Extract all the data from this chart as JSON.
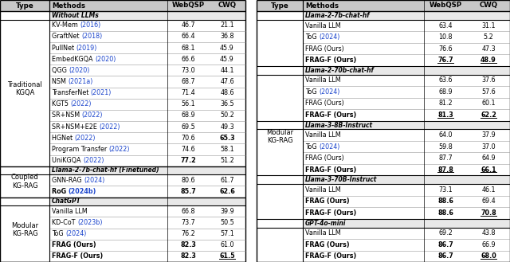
{
  "left_table": {
    "header": [
      "Type",
      "Methods",
      "WebQSP",
      "CWQ"
    ],
    "sections": [
      {
        "section_header": "Without LLMs",
        "section_italic_bold": true,
        "rows": [
          {
            "method": "KV-Mem",
            "year": "(2016)",
            "webqsp": "46.7",
            "cwq": "21.1",
            "bold_webqsp": false,
            "bold_cwq": false,
            "underline_webqsp": false,
            "underline_cwq": false,
            "bold_method": false
          },
          {
            "method": "GraftNet",
            "year": "(2018)",
            "webqsp": "66.4",
            "cwq": "36.8",
            "bold_webqsp": false,
            "bold_cwq": false,
            "underline_webqsp": false,
            "underline_cwq": false,
            "bold_method": false
          },
          {
            "method": "PullNet",
            "year": "(2019)",
            "webqsp": "68.1",
            "cwq": "45.9",
            "bold_webqsp": false,
            "bold_cwq": false,
            "underline_webqsp": false,
            "underline_cwq": false,
            "bold_method": false
          },
          {
            "method": "EmbedKGQA",
            "year": "(2020)",
            "webqsp": "66.6",
            "cwq": "45.9",
            "bold_webqsp": false,
            "bold_cwq": false,
            "underline_webqsp": false,
            "underline_cwq": false,
            "bold_method": false
          },
          {
            "method": "QGG",
            "year": "(2020)",
            "webqsp": "73.0",
            "cwq": "44.1",
            "bold_webqsp": false,
            "bold_cwq": false,
            "underline_webqsp": false,
            "underline_cwq": false,
            "bold_method": false
          },
          {
            "method": "NSM",
            "year": "(2021a)",
            "webqsp": "68.7",
            "cwq": "47.6",
            "bold_webqsp": false,
            "bold_cwq": false,
            "underline_webqsp": false,
            "underline_cwq": false,
            "bold_method": false
          },
          {
            "method": "TransferNet",
            "year": "(2021)",
            "webqsp": "71.4",
            "cwq": "48.6",
            "bold_webqsp": false,
            "bold_cwq": false,
            "underline_webqsp": false,
            "underline_cwq": false,
            "bold_method": false
          },
          {
            "method": "KGT5",
            "year": "(2022)",
            "webqsp": "56.1",
            "cwq": "36.5",
            "bold_webqsp": false,
            "bold_cwq": false,
            "underline_webqsp": false,
            "underline_cwq": false,
            "bold_method": false
          },
          {
            "method": "SR+NSM",
            "year": "(2022)",
            "webqsp": "68.9",
            "cwq": "50.2",
            "bold_webqsp": false,
            "bold_cwq": false,
            "underline_webqsp": false,
            "underline_cwq": false,
            "bold_method": false
          },
          {
            "method": "SR+NSM+E2E",
            "year": "(2022)",
            "webqsp": "69.5",
            "cwq": "49.3",
            "bold_webqsp": false,
            "bold_cwq": false,
            "underline_webqsp": false,
            "underline_cwq": false,
            "bold_method": false
          },
          {
            "method": "HGNet",
            "year": "(2022)",
            "webqsp": "70.6",
            "cwq": "65.3",
            "bold_webqsp": false,
            "bold_cwq": true,
            "underline_webqsp": false,
            "underline_cwq": false,
            "bold_method": false
          },
          {
            "method": "Program Transfer",
            "year": "(2022)",
            "webqsp": "74.6",
            "cwq": "58.1",
            "bold_webqsp": false,
            "bold_cwq": false,
            "underline_webqsp": false,
            "underline_cwq": false,
            "bold_method": false
          },
          {
            "method": "UniKGQA",
            "year": "(2022)",
            "webqsp": "77.2",
            "cwq": "51.2",
            "bold_webqsp": true,
            "bold_cwq": false,
            "underline_webqsp": false,
            "underline_cwq": false,
            "bold_method": false
          }
        ],
        "type_label": "Traditional\nKGQA"
      },
      {
        "section_header": "Llama-2-7b-chat-hf (Finetuned)",
        "section_italic_bold": true,
        "rows": [
          {
            "method": "GNN-RAG",
            "year": "(2024)",
            "webqsp": "80.6",
            "cwq": "61.7",
            "bold_webqsp": false,
            "bold_cwq": false,
            "underline_webqsp": false,
            "underline_cwq": false,
            "bold_method": false
          },
          {
            "method": "RoG",
            "year": "(2024b)",
            "webqsp": "85.7",
            "cwq": "62.6",
            "bold_webqsp": true,
            "bold_cwq": true,
            "underline_webqsp": false,
            "underline_cwq": false,
            "bold_method": true
          }
        ],
        "type_label": "Coupled\nKG-RAG"
      },
      {
        "section_header": "ChatGPT",
        "section_italic_bold": true,
        "rows": [
          {
            "method": "Vanilla LLM",
            "year": "",
            "webqsp": "66.8",
            "cwq": "39.9",
            "bold_webqsp": false,
            "bold_cwq": false,
            "underline_webqsp": false,
            "underline_cwq": false,
            "bold_method": false
          },
          {
            "method": "KD-CoT",
            "year": "(2023b)",
            "webqsp": "73.7",
            "cwq": "50.5",
            "bold_webqsp": false,
            "bold_cwq": false,
            "underline_webqsp": false,
            "underline_cwq": false,
            "bold_method": false
          },
          {
            "method": "ToG",
            "year": "(2024)",
            "webqsp": "76.2",
            "cwq": "57.1",
            "bold_webqsp": false,
            "bold_cwq": false,
            "underline_webqsp": false,
            "underline_cwq": false,
            "bold_method": false
          },
          {
            "method": "FRAG (Ours)",
            "year": "",
            "webqsp": "82.3",
            "cwq": "61.0",
            "bold_webqsp": true,
            "bold_cwq": false,
            "underline_webqsp": false,
            "underline_cwq": false,
            "bold_method": true
          },
          {
            "method": "FRAG-F (Ours)",
            "year": "",
            "webqsp": "82.3",
            "cwq": "61.5",
            "bold_webqsp": true,
            "bold_cwq": true,
            "underline_webqsp": false,
            "underline_cwq": true,
            "bold_method": true
          }
        ],
        "type_label": "Modular\nKG-RAG"
      }
    ]
  },
  "right_table": {
    "header": [
      "Type",
      "Methods",
      "WebQSP",
      "CWQ"
    ],
    "sections": [
      {
        "section_header": "Llama-2-7b-chat-hf",
        "rows": [
          {
            "method": "Vanilla LLM",
            "year": "",
            "webqsp": "63.4",
            "cwq": "31.1",
            "bold_webqsp": false,
            "bold_cwq": false,
            "underline_webqsp": false,
            "underline_cwq": false,
            "bold_method": false
          },
          {
            "method": "ToG",
            "year": "(2024)",
            "webqsp": "10.8",
            "cwq": "5.2",
            "bold_webqsp": false,
            "bold_cwq": false,
            "underline_webqsp": false,
            "underline_cwq": false,
            "bold_method": false
          },
          {
            "method": "FRAG (Ours)",
            "year": "",
            "webqsp": "76.6",
            "cwq": "47.3",
            "bold_webqsp": false,
            "bold_cwq": false,
            "underline_webqsp": false,
            "underline_cwq": false,
            "bold_method": false
          },
          {
            "method": "FRAG-F (Ours)",
            "year": "",
            "webqsp": "76.7",
            "cwq": "48.9",
            "bold_webqsp": true,
            "bold_cwq": true,
            "underline_webqsp": true,
            "underline_cwq": true,
            "bold_method": true
          }
        ]
      },
      {
        "section_header": "Llama-2-70b-chat-hf",
        "rows": [
          {
            "method": "Vanilla LLM",
            "year": "",
            "webqsp": "63.6",
            "cwq": "37.6",
            "bold_webqsp": false,
            "bold_cwq": false,
            "underline_webqsp": false,
            "underline_cwq": false,
            "bold_method": false
          },
          {
            "method": "ToG",
            "year": "(2024)",
            "webqsp": "68.9",
            "cwq": "57.6",
            "bold_webqsp": false,
            "bold_cwq": false,
            "underline_webqsp": false,
            "underline_cwq": false,
            "bold_method": false
          },
          {
            "method": "FRAG (Ours)",
            "year": "",
            "webqsp": "81.2",
            "cwq": "60.1",
            "bold_webqsp": false,
            "bold_cwq": false,
            "underline_webqsp": false,
            "underline_cwq": false,
            "bold_method": false
          },
          {
            "method": "FRAG-F (Ours)",
            "year": "",
            "webqsp": "81.3",
            "cwq": "62.2",
            "bold_webqsp": true,
            "bold_cwq": true,
            "underline_webqsp": true,
            "underline_cwq": true,
            "bold_method": true
          }
        ]
      },
      {
        "section_header": "Llama-3-8B-Instruct",
        "rows": [
          {
            "method": "Vanilla LLM",
            "year": "",
            "webqsp": "64.0",
            "cwq": "37.9",
            "bold_webqsp": false,
            "bold_cwq": false,
            "underline_webqsp": false,
            "underline_cwq": false,
            "bold_method": false
          },
          {
            "method": "ToG",
            "year": "(2024)",
            "webqsp": "59.8",
            "cwq": "37.0",
            "bold_webqsp": false,
            "bold_cwq": false,
            "underline_webqsp": false,
            "underline_cwq": false,
            "bold_method": false
          },
          {
            "method": "FRAG (Ours)",
            "year": "",
            "webqsp": "87.7",
            "cwq": "64.9",
            "bold_webqsp": false,
            "bold_cwq": false,
            "underline_webqsp": false,
            "underline_cwq": false,
            "bold_method": false
          },
          {
            "method": "FRAG-F (Ours)",
            "year": "",
            "webqsp": "87.8",
            "cwq": "66.1",
            "bold_webqsp": true,
            "bold_cwq": true,
            "underline_webqsp": true,
            "underline_cwq": true,
            "bold_method": true
          }
        ]
      },
      {
        "section_header": "Llama-3-70B-Instruct",
        "rows": [
          {
            "method": "Vanilla LLM",
            "year": "",
            "webqsp": "73.1",
            "cwq": "46.1",
            "bold_webqsp": false,
            "bold_cwq": false,
            "underline_webqsp": false,
            "underline_cwq": false,
            "bold_method": false
          },
          {
            "method": "FRAG (Ours)",
            "year": "",
            "webqsp": "88.6",
            "cwq": "69.4",
            "bold_webqsp": true,
            "bold_cwq": false,
            "underline_webqsp": false,
            "underline_cwq": false,
            "bold_method": true
          },
          {
            "method": "FRAG-F (Ours)",
            "year": "",
            "webqsp": "88.6",
            "cwq": "70.8",
            "bold_webqsp": true,
            "bold_cwq": true,
            "underline_webqsp": false,
            "underline_cwq": true,
            "bold_method": true
          }
        ]
      },
      {
        "section_header": "GPT-4o-mini",
        "rows": [
          {
            "method": "Vanilla LLM",
            "year": "",
            "webqsp": "69.2",
            "cwq": "43.8",
            "bold_webqsp": false,
            "bold_cwq": false,
            "underline_webqsp": false,
            "underline_cwq": false,
            "bold_method": false
          },
          {
            "method": "FRAG (Ours)",
            "year": "",
            "webqsp": "86.7",
            "cwq": "66.9",
            "bold_webqsp": true,
            "bold_cwq": false,
            "underline_webqsp": false,
            "underline_cwq": false,
            "bold_method": true
          },
          {
            "method": "FRAG-F (Ours)",
            "year": "",
            "webqsp": "86.7",
            "cwq": "68.0",
            "bold_webqsp": true,
            "bold_cwq": true,
            "underline_webqsp": false,
            "underline_cwq": true,
            "bold_method": true
          }
        ]
      }
    ],
    "type_label": "Modular\nKG-RAG"
  },
  "blue_year_color": "#1a44cc",
  "text_color": "#000000",
  "header_bg": "#c8c8c8",
  "section_bg": "#e8e8e8",
  "font_size": 5.8,
  "header_font_size": 6.2,
  "type_font_size": 6.0
}
